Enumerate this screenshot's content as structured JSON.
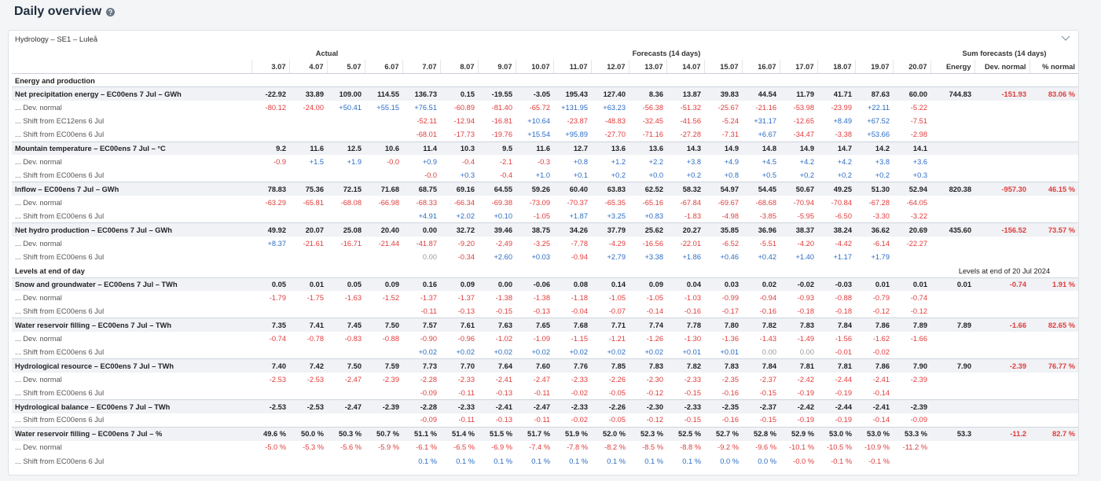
{
  "header": {
    "title": "Daily overview"
  },
  "card": {
    "title": "Hydrology – SE1 – Luleå"
  },
  "table": {
    "groups": [
      {
        "label": "Actual",
        "span": 4
      },
      {
        "label": "Forecasts (14 days)",
        "span": 14
      },
      {
        "label": "Sum forecasts (14 days)",
        "span": 3
      }
    ],
    "columns": [
      "3.07",
      "4.07",
      "5.07",
      "6.07",
      "7.07",
      "8.07",
      "9.07",
      "10.07",
      "11.07",
      "12.07",
      "13.07",
      "14.07",
      "15.07",
      "16.07",
      "17.07",
      "18.07",
      "19.07",
      "20.07",
      "Energy",
      "Dev. normal",
      "% normal"
    ],
    "sections": [
      {
        "title": "Energy and production",
        "rows": [
          {
            "label": "Net precipitation energy – EC00ens 7 Jul – GWh",
            "cells": [
              "-22.92",
              "33.89",
              "109.00",
              "114.55",
              "136.73",
              "0.15",
              "-19.55",
              "-3.05",
              "195.43",
              "127.40",
              "8.36",
              "13.87",
              "39.83",
              "44.54",
              "11.79",
              "41.71",
              "87.63",
              "60.00",
              "744.83",
              "-151.93",
              "83.06 %"
            ]
          },
          {
            "label": "... Dev. normal",
            "cells": [
              "-80.12",
              "-24.00",
              "+50.41",
              "+55.15",
              "+76.51",
              "-60.89",
              "-81.40",
              "-65.72",
              "+131.95",
              "+63.23",
              "-56.38",
              "-51.32",
              "-25.67",
              "-21.16",
              "-53.98",
              "-23.99",
              "+22.11",
              "-5.22",
              null,
              null,
              null
            ]
          },
          {
            "label": "... Shift from EC12ens 6 Jul",
            "cells": [
              null,
              null,
              null,
              null,
              "-52.11",
              "-12.94",
              "-16.81",
              "+10.64",
              "-23.87",
              "-48.83",
              "-32.45",
              "-41.56",
              "-5.24",
              "+31.17",
              "-12.65",
              "+8.49",
              "+67.52",
              "-7.51",
              null,
              null,
              null
            ]
          },
          {
            "label": "... Shift from EC00ens 6 Jul",
            "cells": [
              null,
              null,
              null,
              null,
              "-68.01",
              "-17.73",
              "-19.76",
              "+15.54",
              "+95.89",
              "-27.70",
              "-71.16",
              "-27.28",
              "-7.31",
              "+6.67",
              "-34.47",
              "-3.38",
              "+53.66",
              "-2.98",
              null,
              null,
              null
            ]
          },
          {
            "label": "Mountain temperature – EC00ens 7 Jul – °C",
            "cells": [
              "9.2",
              "11.6",
              "12.5",
              "10.6",
              "11.4",
              "10.3",
              "9.5",
              "11.6",
              "12.7",
              "13.6",
              "13.6",
              "14.3",
              "14.9",
              "14.8",
              "14.9",
              "14.7",
              "14.2",
              "14.1",
              null,
              null,
              null
            ]
          },
          {
            "label": "... Dev. normal",
            "cells": [
              "-0.9",
              "+1.5",
              "+1.9",
              "-0.0",
              "+0.9",
              "-0.4",
              "-2.1",
              "-0.3",
              "+0.8",
              "+1.2",
              "+2.2",
              "+3.8",
              "+4.9",
              "+4.5",
              "+4.2",
              "+4.2",
              "+3.8",
              "+3.6",
              null,
              null,
              null
            ]
          },
          {
            "label": "... Shift from EC00ens 6 Jul",
            "cells": [
              null,
              null,
              null,
              null,
              "-0.0",
              "+0.3",
              "-0.4",
              "+1.0",
              "+0.1",
              "+0.2",
              "+0.0",
              "+0.2",
              "+0.8",
              "+0.5",
              "+0.2",
              "+0.2",
              "+0.2",
              "+0.3",
              null,
              null,
              null
            ]
          },
          {
            "label": "Inflow – EC00ens 7 Jul – GWh",
            "cells": [
              "78.83",
              "75.36",
              "72.15",
              "71.68",
              "68.75",
              "69.16",
              "64.55",
              "59.26",
              "60.40",
              "63.83",
              "62.52",
              "58.32",
              "54.97",
              "54.45",
              "50.67",
              "49.25",
              "51.30",
              "52.94",
              "820.38",
              "-957.30",
              "46.15 %"
            ]
          },
          {
            "label": "... Dev. normal",
            "cells": [
              "-63.29",
              "-65.81",
              "-68.08",
              "-66.98",
              "-68.33",
              "-66.34",
              "-69.38",
              "-73.09",
              "-70.37",
              "-65.35",
              "-65.16",
              "-67.84",
              "-69.67",
              "-68.68",
              "-70.94",
              "-70.84",
              "-67.28",
              "-64.05",
              null,
              null,
              null
            ]
          },
          {
            "label": "... Shift from EC00ens 6 Jul",
            "cells": [
              null,
              null,
              null,
              null,
              "+4.91",
              "+2.02",
              "+0.10",
              "-1.05",
              "+1.87",
              "+3.25",
              "+0.83",
              "-1.83",
              "-4.98",
              "-3.85",
              "-5.95",
              "-6.50",
              "-3.30",
              "-3.22",
              null,
              null,
              null
            ]
          },
          {
            "label": "Net hydro production – EC00ens 7 Jul – GWh",
            "cells": [
              "49.92",
              "20.07",
              "25.08",
              "20.40",
              "0.00",
              "32.72",
              "39.46",
              "38.75",
              "34.26",
              "37.79",
              "25.62",
              "20.27",
              "35.85",
              "36.96",
              "38.37",
              "38.24",
              "36.62",
              "20.69",
              "435.60",
              "-156.52",
              "73.57 %"
            ]
          },
          {
            "label": "... Dev. normal",
            "cells": [
              "+8.37",
              "-21.61",
              "-16.71",
              "-21.44",
              "-41.87",
              "-9.20",
              "-2.49",
              "-3.25",
              "-7.78",
              "-4.29",
              "-16.56",
              "-22.01",
              "-6.52",
              "-5.51",
              "-4.20",
              "-4.42",
              "-6.14",
              "-22.27",
              null,
              null,
              null
            ]
          },
          {
            "label": "... Shift from EC00ens 6 Jul",
            "cells": [
              null,
              null,
              null,
              null,
              "0.00",
              "-0.34",
              "+2.60",
              "+0.03",
              "-0.94",
              "+2.79",
              "+3.38",
              "+1.86",
              "+0.46",
              "+0.42",
              "+1.40",
              "+1.17",
              "+1.79",
              null,
              null,
              null,
              null
            ]
          }
        ]
      },
      {
        "title": "Levels at end of day",
        "note": "Levels at end of 20 Jul 2024",
        "rows": [
          {
            "label": "Snow and groundwater – EC00ens 7 Jul – TWh",
            "cells": [
              "0.05",
              "0.01",
              "0.05",
              "0.09",
              "0.16",
              "0.09",
              "0.00",
              "-0.06",
              "0.08",
              "0.14",
              "0.09",
              "0.04",
              "0.03",
              "0.02",
              "-0.02",
              "-0.03",
              "0.01",
              "0.01",
              "0.01",
              "-0.74",
              "1.91 %"
            ]
          },
          {
            "label": "... Dev. normal",
            "cells": [
              "-1.79",
              "-1.75",
              "-1.63",
              "-1.52",
              "-1.37",
              "-1.37",
              "-1.38",
              "-1.38",
              "-1.18",
              "-1.05",
              "-1.05",
              "-1.03",
              "-0.99",
              "-0.94",
              "-0.93",
              "-0.88",
              "-0.79",
              "-0.74",
              null,
              null,
              null
            ]
          },
          {
            "label": "... Shift from EC00ens 6 Jul",
            "cells": [
              null,
              null,
              null,
              null,
              "-0.11",
              "-0.13",
              "-0.15",
              "-0.13",
              "-0.04",
              "-0.07",
              "-0.14",
              "-0.16",
              "-0.17",
              "-0.16",
              "-0.18",
              "-0.18",
              "-0.12",
              "-0.12",
              null,
              null,
              null
            ]
          },
          {
            "label": "Water reservoir filling – EC00ens 7 Jul – TWh",
            "cells": [
              "7.35",
              "7.41",
              "7.45",
              "7.50",
              "7.57",
              "7.61",
              "7.63",
              "7.65",
              "7.68",
              "7.71",
              "7.74",
              "7.78",
              "7.80",
              "7.82",
              "7.83",
              "7.84",
              "7.86",
              "7.89",
              "7.89",
              "-1.66",
              "82.65 %"
            ]
          },
          {
            "label": "... Dev. normal",
            "cells": [
              "-0.74",
              "-0.78",
              "-0.83",
              "-0.88",
              "-0.90",
              "-0.96",
              "-1.02",
              "-1.09",
              "-1.15",
              "-1.21",
              "-1.26",
              "-1.30",
              "-1.36",
              "-1.43",
              "-1.49",
              "-1.56",
              "-1.62",
              "-1.66",
              null,
              null,
              null
            ]
          },
          {
            "label": "... Shift from EC00ens 6 Jul",
            "cells": [
              null,
              null,
              null,
              null,
              "+0.02",
              "+0.02",
              "+0.02",
              "+0.02",
              "+0.02",
              "+0.02",
              "+0.02",
              "+0.01",
              "+0.01",
              "0.00",
              "0.00",
              "-0.01",
              "-0.02",
              null,
              null,
              null,
              null
            ]
          },
          {
            "label": "Hydrological resource – EC00ens 7 Jul – TWh",
            "cells": [
              "7.40",
              "7.42",
              "7.50",
              "7.59",
              "7.73",
              "7.70",
              "7.64",
              "7.60",
              "7.76",
              "7.85",
              "7.83",
              "7.82",
              "7.83",
              "7.84",
              "7.81",
              "7.81",
              "7.86",
              "7.90",
              "7.90",
              "-2.39",
              "76.77 %"
            ]
          },
          {
            "label": "... Dev. normal",
            "cells": [
              "-2.53",
              "-2.53",
              "-2.47",
              "-2.39",
              "-2.28",
              "-2.33",
              "-2.41",
              "-2.47",
              "-2.33",
              "-2.26",
              "-2.30",
              "-2.33",
              "-2.35",
              "-2.37",
              "-2.42",
              "-2.44",
              "-2.41",
              "-2.39",
              null,
              null,
              null
            ]
          },
          {
            "label": "... Shift from EC00ens 6 Jul",
            "cells": [
              null,
              null,
              null,
              null,
              "-0.09",
              "-0.11",
              "-0.13",
              "-0.11",
              "-0.02",
              "-0.05",
              "-0.12",
              "-0.15",
              "-0.16",
              "-0.15",
              "-0.19",
              "-0.19",
              "-0.14",
              null,
              null,
              null,
              null
            ]
          },
          {
            "label": "Hydrological balance – EC00ens 7 Jul – TWh",
            "cells": [
              "-2.53",
              "-2.53",
              "-2.47",
              "-2.39",
              "-2.28",
              "-2.33",
              "-2.41",
              "-2.47",
              "-2.33",
              "-2.26",
              "-2.30",
              "-2.33",
              "-2.35",
              "-2.37",
              "-2.42",
              "-2.44",
              "-2.41",
              "-2.39",
              null,
              null,
              null
            ]
          },
          {
            "label": "... Shift from EC00ens 6 Jul",
            "cells": [
              null,
              null,
              null,
              null,
              "-0.09",
              "-0.11",
              "-0.13",
              "-0.11",
              "-0.02",
              "-0.05",
              "-0.12",
              "-0.15",
              "-0.16",
              "-0.15",
              "-0.19",
              "-0.19",
              "-0.14",
              "-0.09",
              null,
              null,
              null
            ]
          },
          {
            "label": "Water reservoir filling – EC00ens 7 Jul – %",
            "cells": [
              "49.6 %",
              "50.0 %",
              "50.3 %",
              "50.7 %",
              "51.1 %",
              "51.4 %",
              "51.5 %",
              "51.7 %",
              "51.9 %",
              "52.0 %",
              "52.3 %",
              "52.5 %",
              "52.7 %",
              "52.8 %",
              "52.9 %",
              "53.0 %",
              "53.0 %",
              "53.3 %",
              "53.3",
              "-11.2",
              "82.7 %"
            ]
          },
          {
            "label": "... Dev. normal",
            "cells": [
              "-5.0 %",
              "-5.3 %",
              "-5.6 %",
              "-5.9 %",
              "-6.1 %",
              "-6.5 %",
              "-6.9 %",
              "-7.4 %",
              "-7.8 %",
              "-8.2 %",
              "-8.5 %",
              "-8.8 %",
              "-9.2 %",
              "-9.6 %",
              "-10.1 %",
              "-10.5 %",
              "-10.9 %",
              "-11.2 %",
              null,
              null,
              null
            ]
          },
          {
            "label": "... Shift from EC00ens 6 Jul",
            "cells": [
              null,
              null,
              null,
              null,
              "0.1 %",
              "0.1 %",
              "0.1 %",
              "0.1 %",
              "0.1 %",
              "0.1 %",
              "0.1 %",
              "0.1 %",
              "0.0 %",
              "0.0 %",
              "-0.0 %",
              "-0.1 %",
              "-0.1 %",
              null,
              null,
              null,
              null
            ]
          }
        ]
      }
    ]
  }
}
